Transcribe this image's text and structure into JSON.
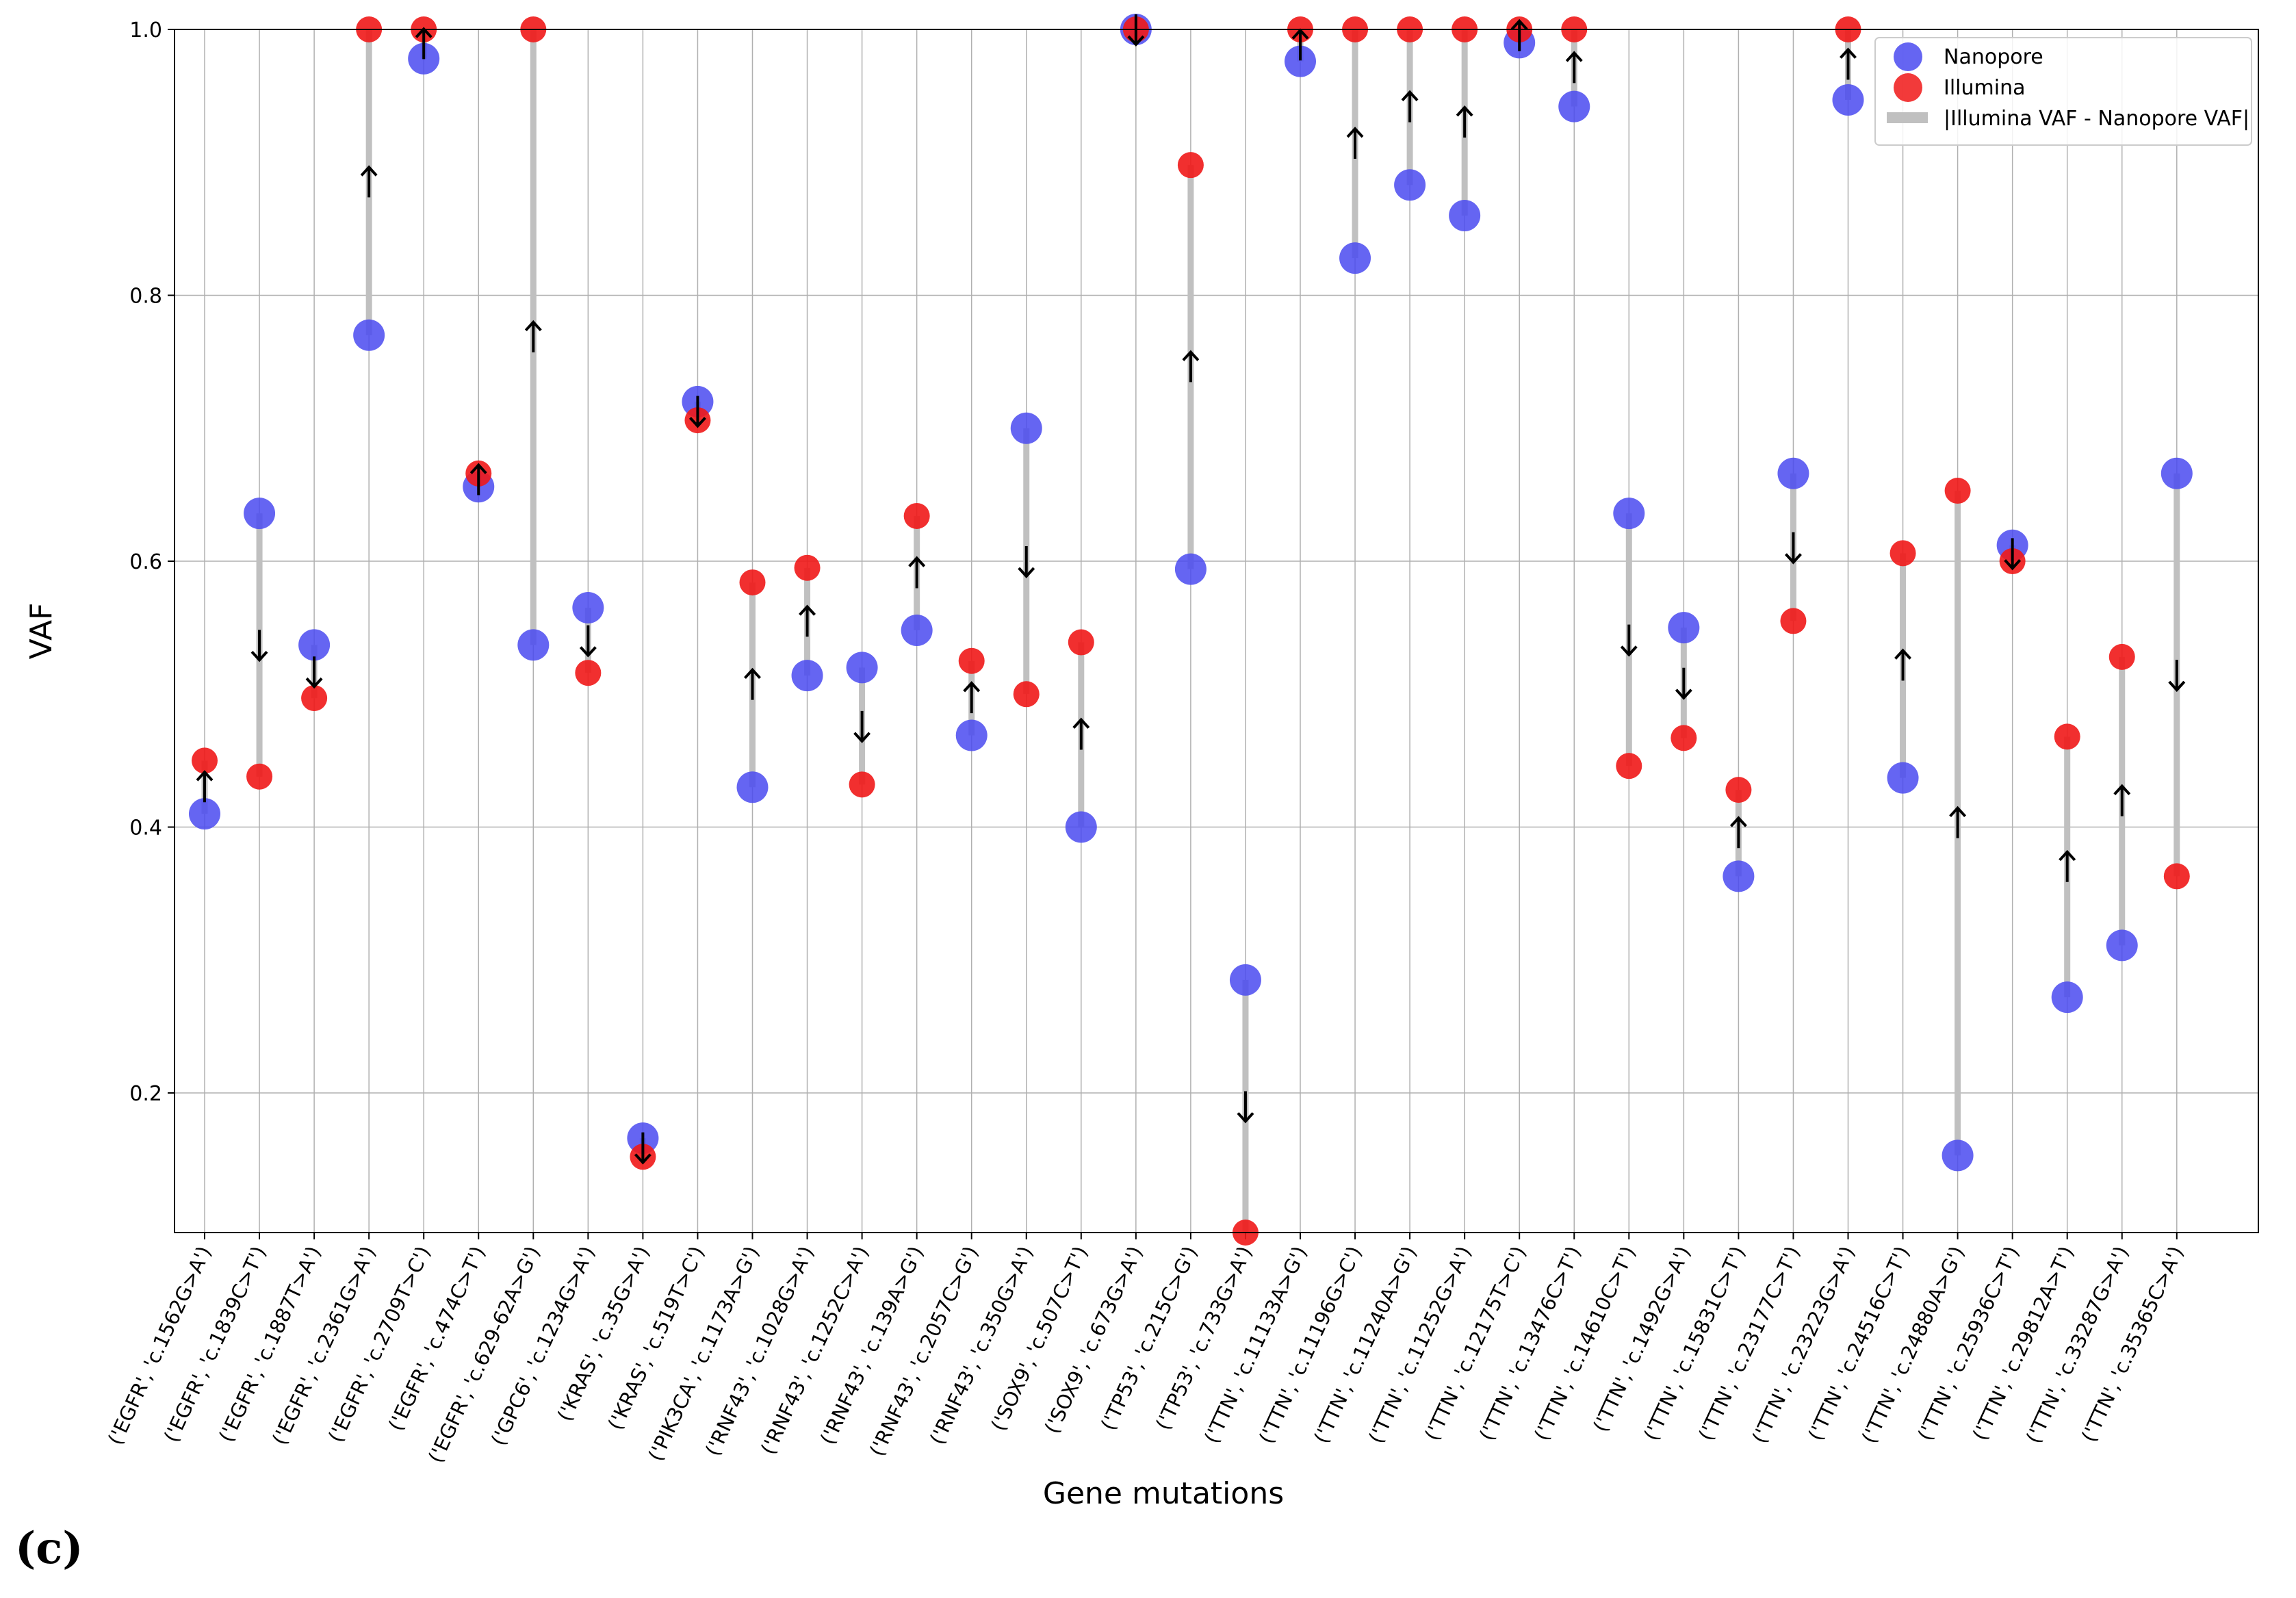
{
  "panel_label": "(c)",
  "chart_data": {
    "type": "scatter",
    "title": "",
    "xlabel": "Gene mutations",
    "ylabel": "VAF",
    "ylim": [
      0.095,
      1.0
    ],
    "yticks": [
      "0.2",
      "0.4",
      "0.6",
      "0.8",
      "1.0"
    ],
    "grid": true,
    "legend_position": "top-right",
    "legend": [
      "Nanopore",
      "Illumina",
      "|Illumina VAF - Nanopore VAF|"
    ],
    "colors": {
      "nanopore": "#4a4af0",
      "illumina": "#f01818",
      "difference": "#c0c0c0",
      "grid": "#b0b0b0"
    },
    "categories": [
      "('EGFR', 'c.1562G>A')",
      "('EGFR', 'c.1839C>T')",
      "('EGFR', 'c.1887T>A')",
      "('EGFR', 'c.2361G>A')",
      "('EGFR', 'c.2709T>C')",
      "('EGFR', 'c.474C>T')",
      "('EGFR', 'c.629-62A>G')",
      "('GPC6', 'c.1234G>A')",
      "('KRAS', 'c.35G>A')",
      "('KRAS', 'c.519T>C')",
      "('PIK3CA', 'c.1173A>G')",
      "('RNF43', 'c.1028G>A')",
      "('RNF43', 'c.1252C>A')",
      "('RNF43', 'c.139A>G')",
      "('RNF43', 'c.2057C>G')",
      "('RNF43', 'c.350G>A')",
      "('SOX9', 'c.507C>T')",
      "('SOX9', 'c.673G>A')",
      "('TP53', 'c.215C>G')",
      "('TP53', 'c.733G>A')",
      "('TTN', 'c.11133A>G')",
      "('TTN', 'c.11196G>C')",
      "('TTN', 'c.11240A>G')",
      "('TTN', 'c.11252G>A')",
      "('TTN', 'c.12175T>C')",
      "('TTN', 'c.13476C>T')",
      "('TTN', 'c.14610C>T')",
      "('TTN', 'c.1492G>A')",
      "('TTN', 'c.15831C>T')",
      "('TTN', 'c.23177C>T')",
      "('TTN', 'c.23223G>A')",
      "('TTN', 'c.24516C>T')",
      "('TTN', 'c.24880A>G')",
      "('TTN', 'c.25936C>T')",
      "('TTN', 'c.29812A>T')",
      "('TTN', 'c.33287G>A')",
      "('TTN', 'c.35365C>A')"
    ],
    "series": [
      {
        "name": "Nanopore",
        "values": [
          0.41,
          0.636,
          0.537,
          0.77,
          0.978,
          0.656,
          0.537,
          0.565,
          0.166,
          0.72,
          0.43,
          0.514,
          0.52,
          0.548,
          0.469,
          0.7,
          0.4,
          1.0,
          0.594,
          0.285,
          0.976,
          0.828,
          0.883,
          0.86,
          0.99,
          0.942,
          0.636,
          0.55,
          0.363,
          0.666,
          0.947,
          0.437,
          0.153,
          0.612,
          0.272,
          0.311,
          0.666
        ]
      },
      {
        "name": "Illumina",
        "values": [
          0.45,
          0.438,
          0.497,
          1.0,
          1.0,
          0.666,
          1.0,
          0.516,
          0.152,
          0.706,
          0.584,
          0.595,
          0.432,
          0.634,
          0.525,
          0.5,
          0.539,
          1.0,
          0.898,
          0.095,
          1.0,
          1.0,
          1.0,
          1.0,
          1.0,
          1.0,
          0.446,
          0.467,
          0.428,
          0.555,
          1.0,
          0.606,
          0.653,
          0.6,
          0.468,
          0.528,
          0.363
        ]
      }
    ]
  }
}
